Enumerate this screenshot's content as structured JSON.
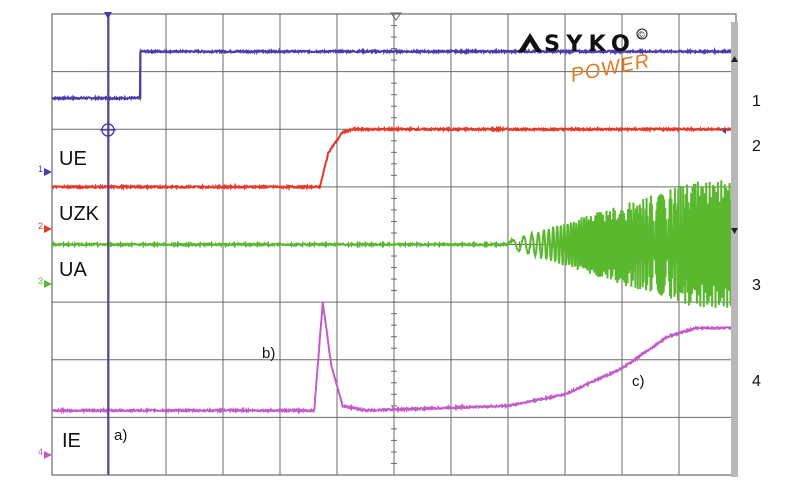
{
  "logo": {
    "brand": "SYKO",
    "sub": "POWER",
    "mark": "©"
  },
  "colors": {
    "grid": "#6a6a6a",
    "ch1": "#4b3ca8",
    "ch2": "#e03a2a",
    "ch3": "#5ab82e",
    "ch4": "#c25cc8",
    "cursor": "#4b3ca8",
    "logo_sub": "#e07a1e",
    "scrollbar": "#b8b8b8"
  },
  "channels": [
    {
      "number": "1",
      "name": "UE"
    },
    {
      "number": "2",
      "name": "UZK"
    },
    {
      "number": "3",
      "name": "UA"
    },
    {
      "number": "4",
      "name": "IE"
    }
  ],
  "annotations": [
    "a)",
    "b)",
    "c)"
  ],
  "chart_data": {
    "type": "line",
    "grid": true,
    "xlim": [
      0,
      12
    ],
    "ylim": [
      -4,
      4
    ],
    "series": [
      {
        "name": "UE",
        "x": [
          0,
          1.55,
          1.55,
          12
        ],
        "y": [
          2.54,
          2.54,
          3.35,
          3.35
        ]
      },
      {
        "name": "UZK",
        "x": [
          0,
          4.7,
          4.85,
          5.1,
          5.3,
          12
        ],
        "y": [
          1.0,
          1.0,
          1.6,
          1.95,
          2.0,
          2.0
        ]
      },
      {
        "name": "UA",
        "x": [
          0,
          8.0,
          12
        ],
        "y": [
          0.0,
          0.0,
          0.0
        ],
        "oscillation": {
          "start_x": 8.0,
          "envelope_start": 0.05,
          "envelope_end": 1.1,
          "full_at_x": 11.3
        }
      },
      {
        "name": "IE",
        "x": [
          0,
          4.6,
          4.75,
          4.9,
          5.1,
          5.5,
          8.0,
          9.0,
          10.0,
          10.8,
          11.3,
          12
        ],
        "y": [
          -2.88,
          -2.88,
          -1.0,
          -2.1,
          -2.8,
          -2.88,
          -2.8,
          -2.6,
          -2.15,
          -1.6,
          -1.45,
          -1.45
        ]
      }
    ]
  }
}
